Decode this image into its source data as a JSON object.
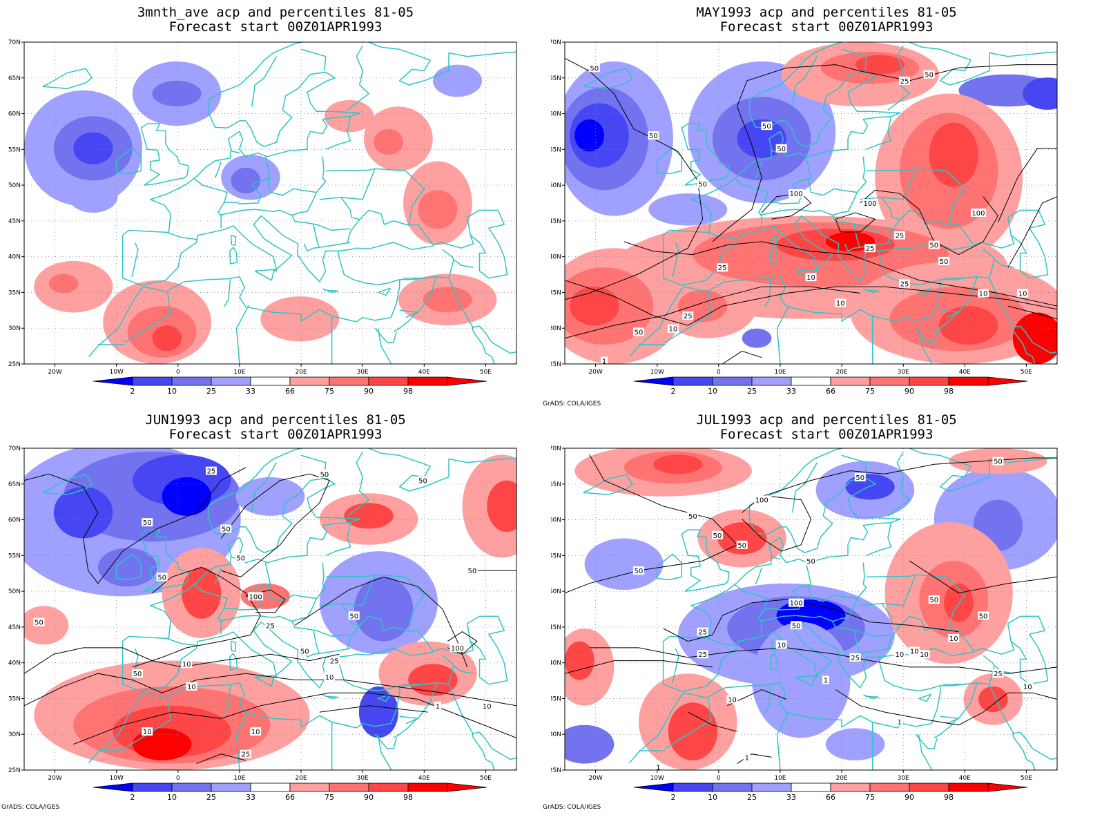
{
  "colors": {
    "blue_levels": [
      "#0000ff",
      "#4646f2",
      "#7373f0",
      "#a0a0ff"
    ],
    "red_levels": [
      "#ffa0a0",
      "#ff7373",
      "#ff4646",
      "#ff0000"
    ],
    "coast": "#2ec4c4",
    "contour": "#000000",
    "grid": "#888888"
  },
  "x_ticks": [
    "20W",
    "10W",
    "0",
    "10E",
    "20E",
    "30E",
    "40E",
    "50E"
  ],
  "y_ticks": [
    "70N",
    "65N",
    "60N",
    "55N",
    "50N",
    "45N",
    "40N",
    "35N",
    "30N",
    "25N"
  ],
  "colorbar_labels": [
    "2",
    "10",
    "25",
    "33",
    "66",
    "75",
    "90",
    "98"
  ],
  "credit": "GrADS: COLA/IGES",
  "panels": [
    {
      "title1": "3mnth_ave acp and percentiles 81-05",
      "title2": "Forecast start 00Z01APR1993",
      "show_credit": false,
      "contour_labels": []
    },
    {
      "title1": "MAY1993 acp and percentiles 81-05",
      "title2": "Forecast start 00Z01APR1993",
      "show_credit": true,
      "contour_labels": [
        "50",
        "50",
        "50",
        "50",
        "50",
        "100",
        "100",
        "100",
        "25",
        "50",
        "25",
        "25",
        "10",
        "25",
        "10",
        "10",
        "10",
        "25",
        "50",
        "50",
        "25",
        "50",
        "10",
        "1"
      ]
    },
    {
      "title1": "JUN1993 acp and percentiles 81-05",
      "title2": "Forecast start 00Z01APR1993",
      "show_credit": true,
      "contour_labels": [
        "25",
        "50",
        "50",
        "50",
        "50",
        "50",
        "50",
        "100",
        "50",
        "25",
        "50",
        "100",
        "50",
        "10",
        "25",
        "10",
        "10",
        "10",
        "1",
        "10",
        "10",
        "50",
        "50",
        "25"
      ]
    },
    {
      "title1": "JUL1993 acp and percentiles 81-05",
      "title2": "Forecast start 00Z01APR1993",
      "show_credit": true,
      "contour_labels": [
        "50",
        "50",
        "50",
        "100",
        "50",
        "50",
        "50",
        "50",
        "50",
        "50",
        "100",
        "50",
        "10",
        "10",
        "25",
        "25",
        "25",
        "10",
        "10",
        "10",
        "1",
        "10",
        "1",
        "25",
        "10",
        "1",
        "1"
      ]
    }
  ]
}
